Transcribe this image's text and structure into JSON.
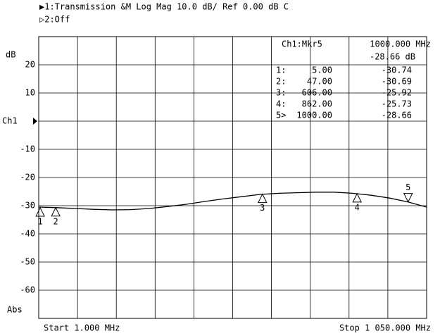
{
  "chart_data": {
    "type": "line",
    "header": [
      "▶1:Transmission &M Log Mag 10.0 dB/ Ref 0.00 dB C",
      "▷2:Off"
    ],
    "y_unit": "dB",
    "y_format": "Abs",
    "start_label": "Start 1.000 MHz",
    "stop_label": "Stop 1 050.000 MHz",
    "xlim": [
      1,
      1050
    ],
    "ylim": [
      -70,
      30
    ],
    "yticks": [
      20,
      10,
      {
        "value": 0,
        "label": "Ch1"
      },
      -10,
      -20,
      -30,
      -40,
      -50,
      -60
    ],
    "ref_level": 0,
    "grid": true,
    "x": [
      1,
      50,
      100,
      150,
      200,
      250,
      300,
      350,
      400,
      450,
      500,
      550,
      600,
      650,
      700,
      750,
      800,
      850,
      900,
      950,
      1000,
      1050
    ],
    "series": [
      {
        "name": "Ch1",
        "color": "#000000",
        "values": [
          -30.5,
          -30.7,
          -31.0,
          -31.3,
          -31.5,
          -31.4,
          -31.0,
          -30.3,
          -29.5,
          -28.5,
          -27.6,
          -26.8,
          -26.0,
          -25.6,
          -25.4,
          -25.2,
          -25.2,
          -25.6,
          -26.3,
          -27.3,
          -28.7,
          -30.5
        ]
      }
    ],
    "marker_readout": {
      "title": "Ch1:Mkr5",
      "freq": "1000.000 MHz",
      "value": "-28.66 dB"
    },
    "markers": [
      {
        "label": "1",
        "index_label": "1:",
        "x": 5,
        "value": -30.74,
        "x_label": "5.00",
        "value_label": "-30.74",
        "active": false
      },
      {
        "label": "2",
        "index_label": "2:",
        "x": 47,
        "value": -30.69,
        "x_label": "47.00",
        "value_label": "-30.69",
        "active": false
      },
      {
        "label": "3",
        "index_label": "3:",
        "x": 606,
        "value": -25.92,
        "x_label": "606.00",
        "value_label": "-25.92",
        "active": false
      },
      {
        "label": "4",
        "index_label": "4:",
        "x": 862,
        "value": -25.73,
        "x_label": "862.00",
        "value_label": "-25.73",
        "active": false
      },
      {
        "label": "5",
        "index_label": "5>",
        "x": 1000,
        "value": -28.66,
        "x_label": "1000.00",
        "value_label": "-28.66",
        "active": true
      }
    ]
  }
}
